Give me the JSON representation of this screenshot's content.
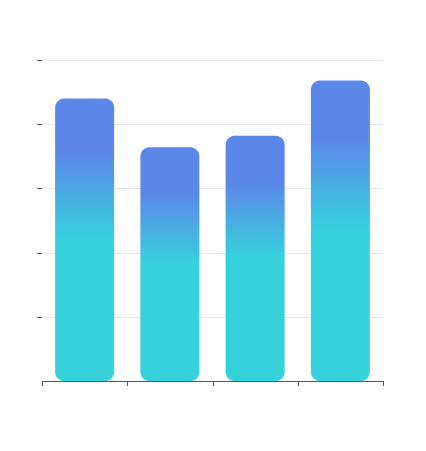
{
  "chart_data": {
    "type": "bar",
    "categories": [
      "",
      "",
      "",
      ""
    ],
    "values": [
      4.4,
      3.64,
      3.82,
      4.68
    ],
    "ylim": [
      0,
      5
    ],
    "y_ticks": [
      0,
      1,
      2,
      3,
      4,
      5
    ],
    "grid": true,
    "legend": "none",
    "colors": {
      "bar_top": "#5b88e8",
      "bar_bottom": "#36d2dc",
      "grid": "#e6e6e6",
      "axis": "#555555"
    }
  }
}
